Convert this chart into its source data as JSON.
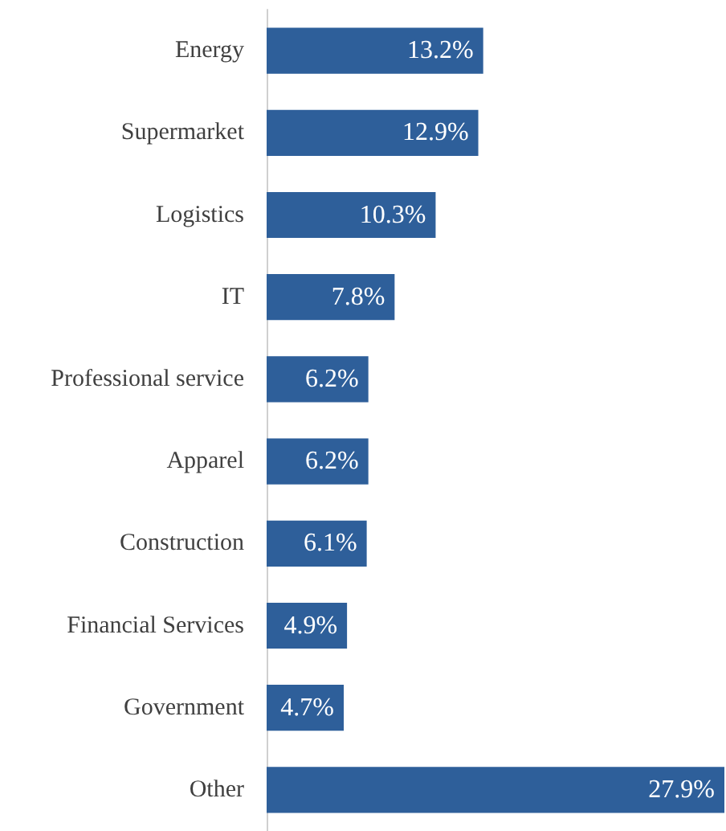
{
  "chart_data": {
    "type": "bar",
    "orientation": "horizontal",
    "categories": [
      "Energy",
      "Supermarket",
      "Logistics",
      "IT",
      "Professional service",
      "Apparel",
      "Construction",
      "Financial Services",
      "Government",
      "Other"
    ],
    "values": [
      13.2,
      12.9,
      10.3,
      7.8,
      6.2,
      6.2,
      6.1,
      4.9,
      4.7,
      27.9
    ],
    "value_labels": [
      "13.2%",
      "12.9%",
      "10.3%",
      "7.8%",
      "6.2%",
      "6.2%",
      "6.1%",
      "4.9%",
      "4.7%",
      "27.9%"
    ],
    "color": "#2e5f9a"
  }
}
